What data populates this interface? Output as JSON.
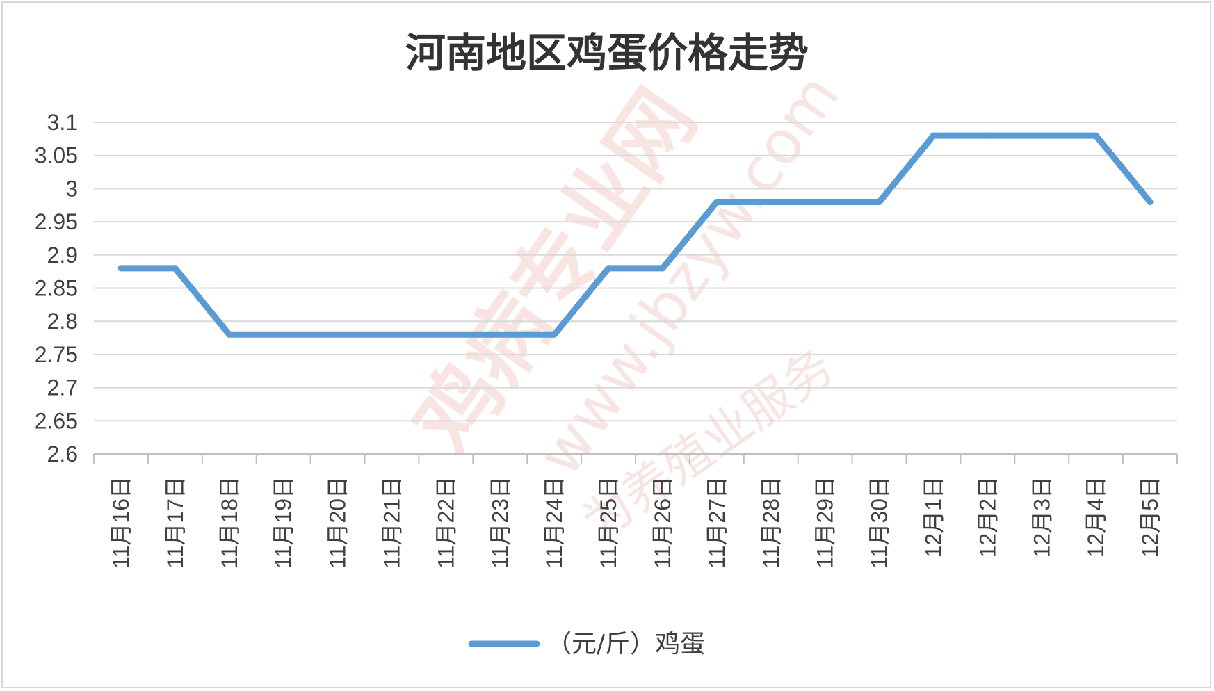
{
  "chart_data": {
    "type": "line",
    "title": "河南地区鸡蛋价格走势",
    "categories": [
      "11月16日",
      "11月17日",
      "11月18日",
      "11月19日",
      "11月20日",
      "11月21日",
      "11月22日",
      "11月23日",
      "11月24日",
      "11月25日",
      "11月26日",
      "11月27日",
      "11月28日",
      "11月29日",
      "11月30日",
      "12月1日",
      "12月2日",
      "12月3日",
      "12月4日",
      "12月5日"
    ],
    "series": [
      {
        "name": "（元/斤）鸡蛋",
        "values": [
          2.88,
          2.88,
          2.78,
          2.78,
          2.78,
          2.78,
          2.78,
          2.78,
          2.78,
          2.88,
          2.88,
          2.98,
          2.98,
          2.98,
          2.98,
          3.08,
          3.08,
          3.08,
          3.08,
          2.98
        ],
        "color": "#5b9bd5"
      }
    ],
    "ylim": [
      2.6,
      3.1
    ],
    "yticks": [
      "3.1",
      "3.05",
      "3",
      "2.95",
      "2.9",
      "2.85",
      "2.8",
      "2.75",
      "2.7",
      "2.65",
      "2.6"
    ],
    "grid": true,
    "legend_position": "bottom"
  },
  "watermark": {
    "brand": "鸡病专业网",
    "url": "www.jbzyw.com",
    "slogan": "为养殖业服务"
  }
}
